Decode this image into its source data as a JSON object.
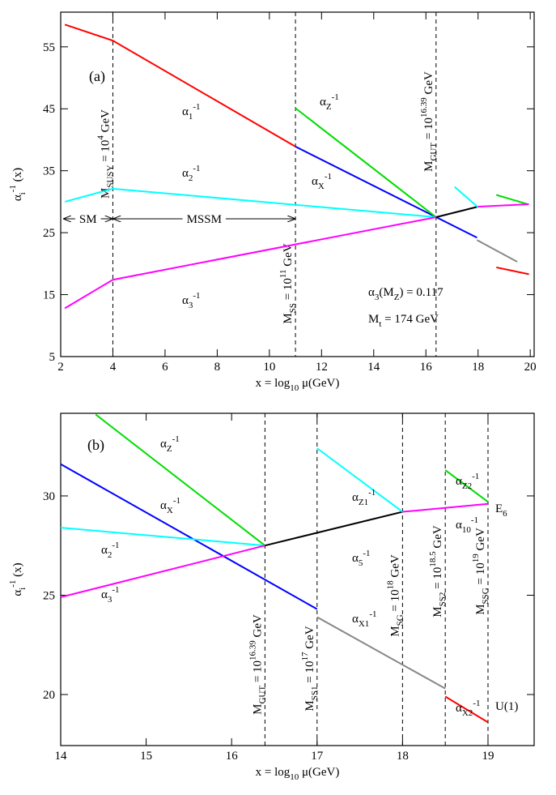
{
  "chart_data": [
    {
      "type": "line",
      "panel_label": "(a)",
      "xlabel": [
        {
          "t": "x = log"
        },
        {
          "t": "10",
          "s": "sub"
        },
        {
          "t": " μ(GeV)"
        }
      ],
      "ylabel": [
        {
          "t": "α"
        },
        {
          "t": "i",
          "s": "sub"
        },
        {
          "t": "-1",
          "s": "sup"
        },
        {
          "t": " (x)"
        }
      ],
      "xlim": [
        2,
        20.15
      ],
      "xticks": [
        2,
        4,
        6,
        8,
        10,
        12,
        14,
        16,
        18,
        20
      ],
      "ylim": [
        5,
        60.6
      ],
      "yticks": [
        5,
        15,
        25,
        35,
        45,
        55
      ],
      "series": [
        {
          "color": "#ff0000",
          "x": [
            2.16,
            4,
            11
          ],
          "values": [
            58.6,
            56.0,
            38.9
          ]
        },
        {
          "color": "#0000ff",
          "x": [
            11,
            17.96
          ],
          "values": [
            38.9,
            24.2
          ]
        },
        {
          "color": "#00dd00",
          "x": [
            11,
            16.39
          ],
          "values": [
            45.1,
            27.5
          ]
        },
        {
          "color": "#00ffff",
          "x": [
            2.16,
            4,
            16.39
          ],
          "values": [
            30.0,
            32.1,
            27.5
          ]
        },
        {
          "color": "#ff00ff",
          "x": [
            2.16,
            4,
            16.39
          ],
          "values": [
            12.8,
            17.4,
            27.5
          ]
        },
        {
          "color": "#000000",
          "x": [
            16.39,
            18.0
          ],
          "values": [
            27.5,
            29.2
          ]
        },
        {
          "color": "#888888",
          "x": [
            17.96,
            19.5
          ],
          "values": [
            23.8,
            20.3
          ]
        },
        {
          "color": "#ff0000",
          "x": [
            18.7,
            19.95
          ],
          "values": [
            19.4,
            18.3
          ]
        },
        {
          "color": "#00ffff",
          "x": [
            17.1,
            18.0
          ],
          "values": [
            32.4,
            29.1
          ]
        },
        {
          "color": "#00dd00",
          "x": [
            18.7,
            19.9
          ],
          "values": [
            31.1,
            29.6
          ]
        },
        {
          "color": "#ff00ff",
          "x": [
            18.0,
            19.95
          ],
          "values": [
            29.2,
            29.6
          ]
        }
      ],
      "vlines": [
        4,
        11,
        16.39
      ],
      "vline_labels": [
        [
          {
            "t": "M"
          },
          {
            "t": "SUSY",
            "s": "sub"
          },
          {
            "t": " = 10"
          },
          {
            "t": "4",
            "s": "sup"
          },
          {
            "t": " GeV"
          }
        ],
        [
          {
            "t": "M"
          },
          {
            "t": "SS",
            "s": "sub"
          },
          {
            "t": " = 10"
          },
          {
            "t": "11",
            "s": "sup"
          },
          {
            "t": " GeV"
          }
        ],
        [
          {
            "t": "M"
          },
          {
            "t": "GUT",
            "s": "sub"
          },
          {
            "t": " = 10"
          },
          {
            "t": "16.39",
            "s": "sup"
          },
          {
            "t": " GeV"
          }
        ]
      ],
      "brackets": [
        "SM",
        "MSSM"
      ],
      "annotations": [
        [
          {
            "t": "α"
          },
          {
            "t": "1",
            "s": "sub"
          },
          {
            "t": "-1",
            "s": "sup"
          }
        ],
        [
          {
            "t": "α"
          },
          {
            "t": "2",
            "s": "sub"
          },
          {
            "t": "-1",
            "s": "sup"
          }
        ],
        [
          {
            "t": "α"
          },
          {
            "t": "3",
            "s": "sub"
          },
          {
            "t": "-1",
            "s": "sup"
          }
        ],
        [
          {
            "t": "α"
          },
          {
            "t": "Z",
            "s": "sub"
          },
          {
            "t": "-1",
            "s": "sup"
          }
        ],
        [
          {
            "t": "α"
          },
          {
            "t": "X",
            "s": "sub"
          },
          {
            "t": "-1",
            "s": "sup"
          }
        ],
        [
          {
            "t": "α"
          },
          {
            "t": "3",
            "s": "sub"
          },
          {
            "t": "(M"
          },
          {
            "t": "Z",
            "s": "sub"
          },
          {
            "t": ") = 0.117"
          }
        ],
        [
          {
            "t": "M"
          },
          {
            "t": "t",
            "s": "sub"
          },
          {
            "t": " = 174 GeV"
          }
        ]
      ]
    },
    {
      "type": "line",
      "panel_label": "(b)",
      "xlabel": [
        {
          "t": "x = log"
        },
        {
          "t": "10",
          "s": "sub"
        },
        {
          "t": " μ(GeV)"
        }
      ],
      "ylabel": [
        {
          "t": "α"
        },
        {
          "t": "i",
          "s": "sub"
        },
        {
          "t": "-1",
          "s": "sup"
        },
        {
          "t": " (x)"
        }
      ],
      "xlim": [
        14,
        19.54
      ],
      "xticks": [
        14,
        15,
        16,
        17,
        18,
        19
      ],
      "ylim": [
        17.43,
        34.16
      ],
      "yticks": [
        20,
        25,
        30
      ],
      "series": [
        {
          "color": "#00dd00",
          "x": [
            14.41,
            16.39
          ],
          "values": [
            34.1,
            27.5
          ]
        },
        {
          "color": "#0000ff",
          "x": [
            14,
            17
          ],
          "values": [
            31.6,
            24.3
          ]
        },
        {
          "color": "#00ffff",
          "x": [
            14,
            16.39
          ],
          "values": [
            28.4,
            27.5
          ]
        },
        {
          "color": "#ff00ff",
          "x": [
            14,
            16.39
          ],
          "values": [
            24.9,
            27.5
          ]
        },
        {
          "color": "#000000",
          "x": [
            16.39,
            18
          ],
          "values": [
            27.5,
            29.2
          ]
        },
        {
          "color": "#00ffff",
          "x": [
            17,
            18
          ],
          "values": [
            32.4,
            29.2
          ]
        },
        {
          "color": "#ff00ff",
          "x": [
            18,
            19
          ],
          "values": [
            29.2,
            29.6
          ]
        },
        {
          "color": "#00dd00",
          "x": [
            18.5,
            19
          ],
          "values": [
            31.3,
            29.7
          ]
        },
        {
          "color": "#888888",
          "x": [
            17,
            18.5
          ],
          "values": [
            23.9,
            20.3
          ]
        },
        {
          "color": "#ff0000",
          "x": [
            18.5,
            19
          ],
          "values": [
            19.9,
            18.6
          ]
        }
      ],
      "vlines": [
        16.39,
        17,
        18,
        18.5,
        19
      ],
      "vline_labels": [
        [
          {
            "t": "M"
          },
          {
            "t": "GUT",
            "s": "sub"
          },
          {
            "t": " = 10"
          },
          {
            "t": "16.39",
            "s": "sup"
          },
          {
            "t": " GeV"
          }
        ],
        [
          {
            "t": "M"
          },
          {
            "t": "SS1",
            "s": "sub"
          },
          {
            "t": " = 10"
          },
          {
            "t": "17",
            "s": "sup"
          },
          {
            "t": " GeV"
          }
        ],
        [
          {
            "t": "M"
          },
          {
            "t": "SG",
            "s": "sub"
          },
          {
            "t": " = 10"
          },
          {
            "t": "18",
            "s": "sup"
          },
          {
            "t": " GeV"
          }
        ],
        [
          {
            "t": "M"
          },
          {
            "t": "SS2",
            "s": "sub"
          },
          {
            "t": " = 10"
          },
          {
            "t": "18.5",
            "s": "sup"
          },
          {
            "t": " GeV"
          }
        ],
        [
          {
            "t": "M"
          },
          {
            "t": "SSG",
            "s": "sub"
          },
          {
            "t": " = 10"
          },
          {
            "t": "19",
            "s": "sup"
          },
          {
            "t": " GeV"
          }
        ]
      ],
      "annotations": [
        [
          {
            "t": "α"
          },
          {
            "t": "Z",
            "s": "sub"
          },
          {
            "t": "-1",
            "s": "sup"
          }
        ],
        [
          {
            "t": "α"
          },
          {
            "t": "X",
            "s": "sub"
          },
          {
            "t": "-1",
            "s": "sup"
          }
        ],
        [
          {
            "t": "α"
          },
          {
            "t": "2",
            "s": "sub"
          },
          {
            "t": "-1",
            "s": "sup"
          }
        ],
        [
          {
            "t": "α"
          },
          {
            "t": "3",
            "s": "sub"
          },
          {
            "t": "-1",
            "s": "sup"
          }
        ],
        [
          {
            "t": "α"
          },
          {
            "t": "Z1",
            "s": "sub"
          },
          {
            "t": "-1",
            "s": "sup"
          }
        ],
        [
          {
            "t": "α"
          },
          {
            "t": "5",
            "s": "sub"
          },
          {
            "t": "-1",
            "s": "sup"
          }
        ],
        [
          {
            "t": "α"
          },
          {
            "t": "X1",
            "s": "sub"
          },
          {
            "t": "-1",
            "s": "sup"
          }
        ],
        [
          {
            "t": "α"
          },
          {
            "t": "Z2",
            "s": "sub"
          },
          {
            "t": "-1",
            "s": "sup"
          }
        ],
        [
          {
            "t": "α"
          },
          {
            "t": "10",
            "s": "sub"
          },
          {
            "t": "-1",
            "s": "sup"
          }
        ],
        [
          {
            "t": "α"
          },
          {
            "t": "X2",
            "s": "sub"
          },
          {
            "t": "-1",
            "s": "sup"
          }
        ],
        [
          {
            "t": "E"
          },
          {
            "t": "6",
            "s": "sub"
          }
        ],
        [
          {
            "t": "U(1)"
          }
        ]
      ]
    }
  ]
}
